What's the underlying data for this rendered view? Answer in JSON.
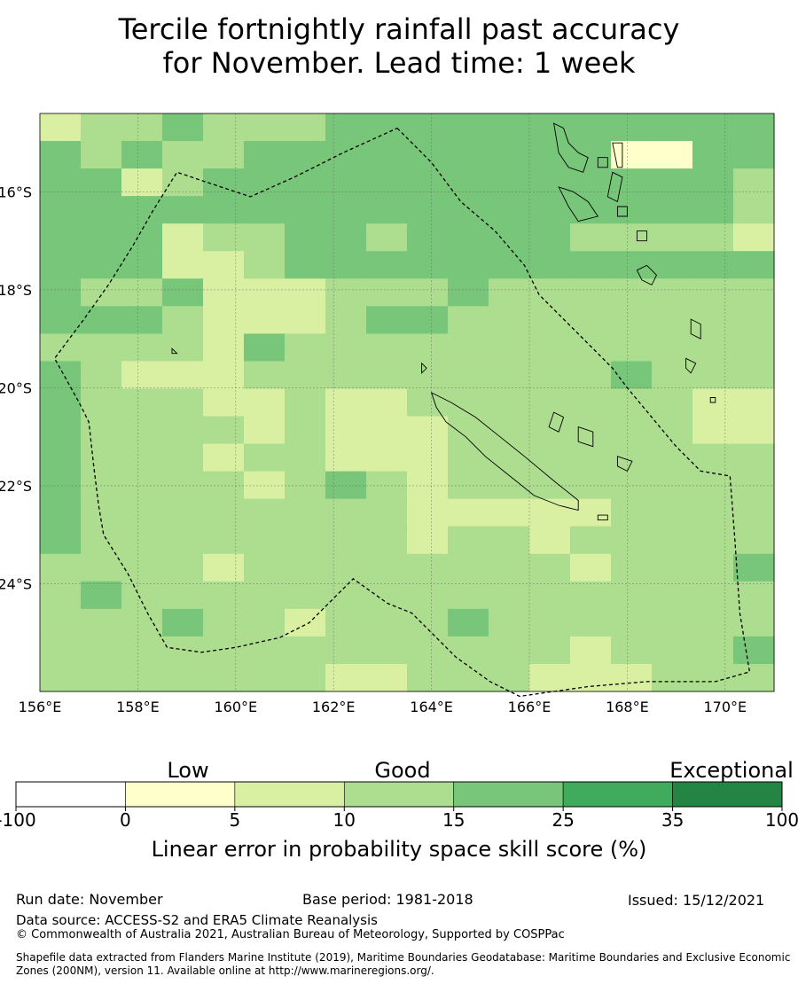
{
  "title_line1": "Tercile fortnightly rainfall past accuracy",
  "title_line2": "for November. Lead time: 1 week",
  "map": {
    "lon_range": [
      156,
      171
    ],
    "lat_range": [
      -26.2,
      -14.4
    ],
    "lon_ticks": [
      "156°E",
      "158°E",
      "160°E",
      "162°E",
      "164°E",
      "166°E",
      "168°E",
      "170°E"
    ],
    "lat_ticks": [
      "16°S",
      "18°S",
      "20°S",
      "22°S",
      "24°S"
    ],
    "grid_columns": 18,
    "grid_rows": 21,
    "cell_class_grid": [
      "233433344444444444",
      "434334444444441144",
      "442344444444444443",
      "444444444444444443",
      "444233443444433332",
      "444223444444444444",
      "433422233343333333",
      "444322234433333333",
      "333324333333333333",
      "432223333333334333",
      "433322322333333322",
      "433332322233333322",
      "433323322233333333",
      "433332343233333333",
      "433333333222223333",
      "433333333233233333",
      "333323333333323334",
      "343333333333333333",
      "333433233343333333",
      "333333333333323334",
      "333333322333222333"
    ],
    "boundary_style": "dashed"
  },
  "colorbar": {
    "group_labels": [
      "Low",
      "Good",
      "Exceptional"
    ],
    "tick_labels": [
      "-100",
      "0",
      "5",
      "10",
      "15",
      "25",
      "35",
      "100"
    ],
    "colors": [
      "#ffffff",
      "#ffffcc",
      "#d9f0a3",
      "#addd8e",
      "#78c679",
      "#41ab5d",
      "#238443"
    ],
    "title": "Linear error in probability space skill score (%)"
  },
  "footer": {
    "run_date": "Run date: November",
    "base_period": "Base period: 1981-2018",
    "issued": "Issued: 15/12/2021",
    "data_source": "Data source: ACCESS-S2 and ERA5 Climate Reanalysis",
    "copyright": "© Commonwealth of Australia 2021, Australian Bureau of Meteorology, Supported by COSPPac",
    "shapefile_line1": "Shapefile data extracted from Flanders Marine Institute (2019), Maritime Boundaries Geodatabase: Maritime Boundaries and Exclusive Economic",
    "shapefile_line2": "Zones (200NM), version 11. Available online at http://www.marineregions.org/."
  }
}
